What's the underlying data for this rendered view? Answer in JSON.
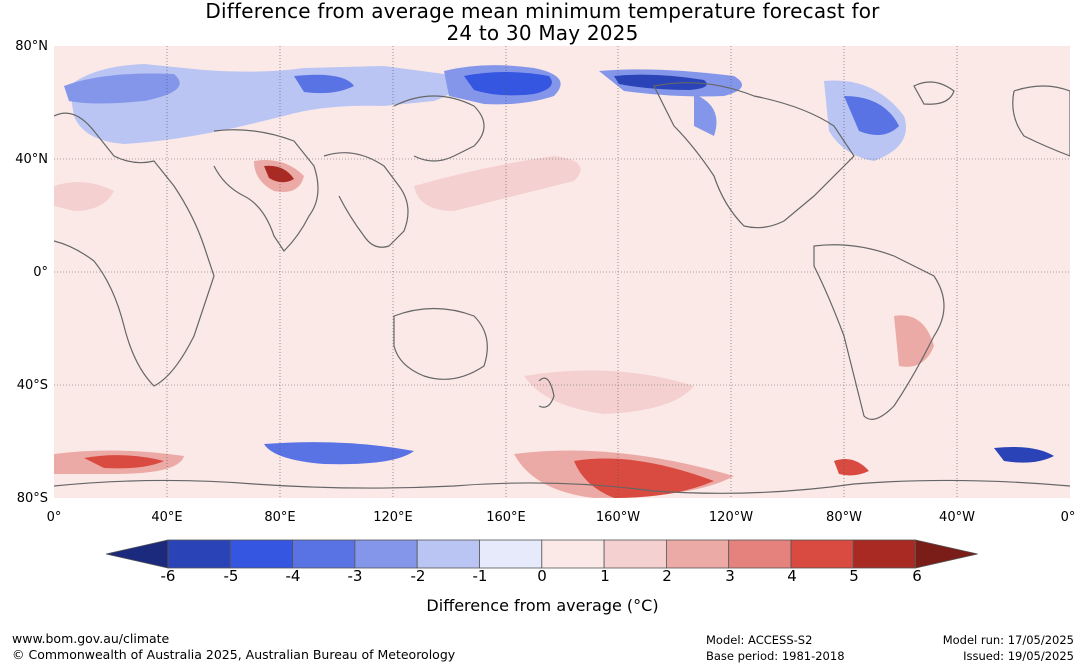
{
  "title": {
    "line1": "Difference from average mean minimum temperature forecast for",
    "line2": "24 to 30 May 2025"
  },
  "lat_labels": [
    "80°N",
    "40°N",
    "0°",
    "40°S",
    "80°S"
  ],
  "lon_labels": [
    "0°",
    "40°E",
    "80°E",
    "120°E",
    "160°E",
    "160°W",
    "120°W",
    "80°W",
    "40°W",
    "0°"
  ],
  "colorbar": {
    "ticks": [
      "-6",
      "-5",
      "-4",
      "-3",
      "-2",
      "-1",
      "0",
      "1",
      "2",
      "3",
      "4",
      "5",
      "6"
    ],
    "label": "Difference from average (°C)",
    "colors": [
      "#1b2a7c",
      "#2a44b8",
      "#3456e0",
      "#5a73e4",
      "#8496ea",
      "#bac5f3",
      "#e6eafb",
      "#fbe9e8",
      "#f4d1d0",
      "#ebaaa6",
      "#e5827d",
      "#d94a40",
      "#a82a22",
      "#7a1c18"
    ]
  },
  "footer": {
    "website": "www.bom.gov.au/climate",
    "copyright": "© Commonwealth of Australia 2025, Australian Bureau of Meteorology",
    "model": "Model: ACCESS-S2",
    "base_period": "Base period: 1981-2018",
    "model_run": "Model run: 17/05/2025",
    "issued": "Issued: 19/05/2025"
  }
}
